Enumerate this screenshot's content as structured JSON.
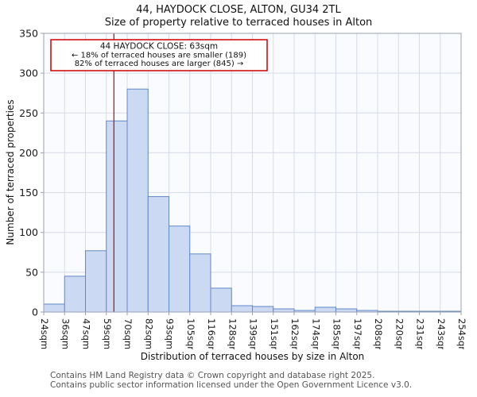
{
  "title": "44, HAYDOCK CLOSE, ALTON, GU34 2TL",
  "subtitle": "Size of property relative to terraced houses in Alton",
  "annotation": {
    "line1": "44 HAYDOCK CLOSE: 63sqm",
    "line2": "← 18% of terraced houses are smaller (189)",
    "line3": "82% of terraced houses are larger (845) →"
  },
  "footer": {
    "line1": "Contains HM Land Registry data © Crown copyright and database right 2025.",
    "line2": "Contains public sector information licensed under the Open Government Licence v3.0."
  },
  "colors": {
    "bar_fill": "#ccd9f2",
    "bar_stroke": "#6189ca",
    "marker_line": "#aa2222",
    "annotation_border": "#cc0000",
    "grid": "#d5dbe8",
    "plot_bg": "#fafbfe",
    "axis": "#9aa2b2"
  },
  "chart_data": {
    "type": "bar",
    "title": "44, HAYDOCK CLOSE, ALTON, GU34 2TL",
    "subtitle": "Size of property relative to terraced houses in Alton",
    "xlabel": "Distribution of terraced houses by size in Alton",
    "ylabel": "Number of terraced properties",
    "ylim": [
      0,
      350
    ],
    "yticks": [
      0,
      50,
      100,
      150,
      200,
      250,
      300,
      350
    ],
    "grid": true,
    "legend": false,
    "bin_edges_sqm": [
      24,
      36,
      47,
      59,
      70,
      82,
      93,
      105,
      116,
      128,
      139,
      151,
      162,
      174,
      185,
      197,
      208,
      220,
      231,
      243,
      254
    ],
    "tick_labels": [
      "24sqm",
      "36sqm",
      "47sqm",
      "59sqm",
      "70sqm",
      "82sqm",
      "93sqm",
      "105sqm",
      "116sqm",
      "128sqm",
      "139sqm",
      "151sqm",
      "162sqm",
      "174sqm",
      "185sqm",
      "197sqm",
      "208sqm",
      "220sqm",
      "231sqm",
      "243sqm",
      "254sqm"
    ],
    "values": [
      10,
      45,
      77,
      240,
      280,
      145,
      108,
      73,
      30,
      8,
      7,
      4,
      2,
      6,
      4,
      2,
      1,
      1,
      1,
      1
    ],
    "marker": {
      "value_sqm": 63,
      "label": "44 HAYDOCK CLOSE: 63sqm",
      "smaller_pct": 18,
      "smaller_count": 189,
      "larger_pct": 82,
      "larger_count": 845
    }
  }
}
